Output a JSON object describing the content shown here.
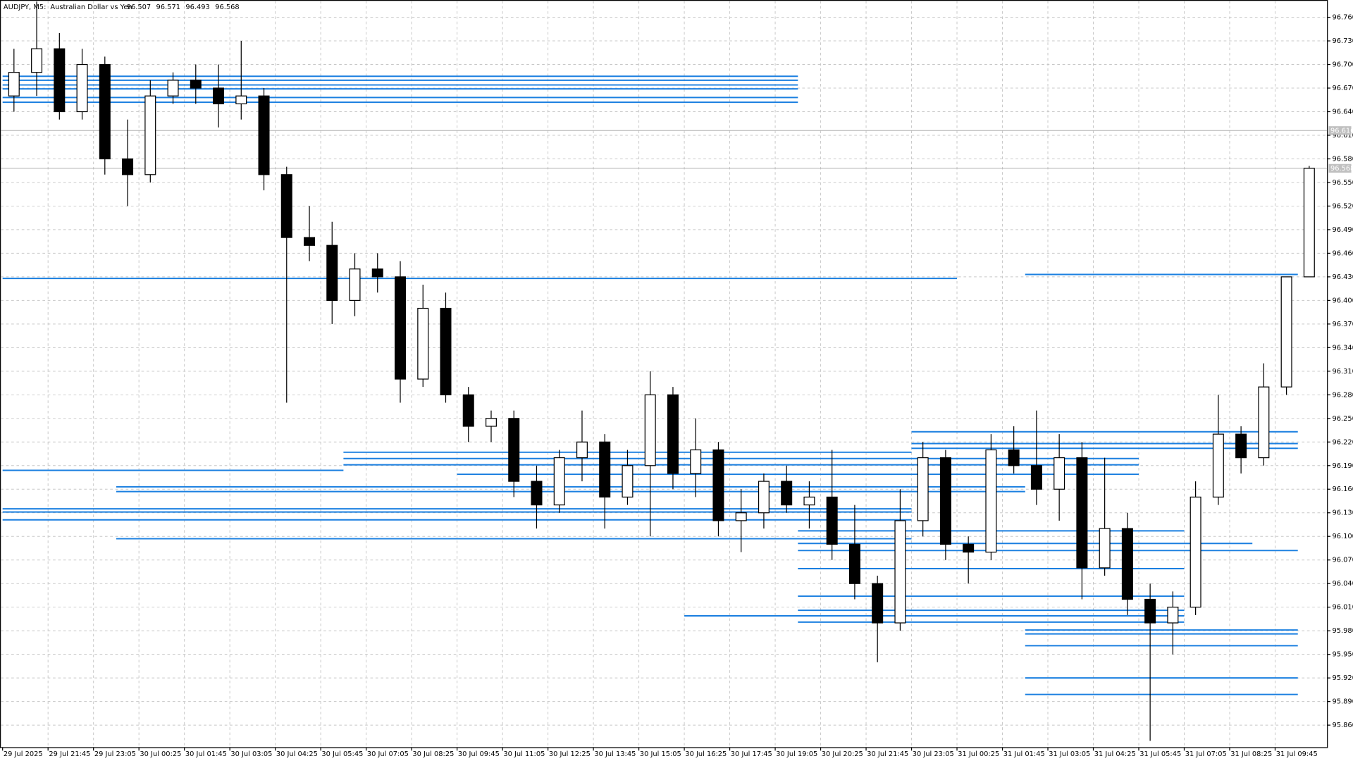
{
  "chart_data": {
    "type": "candlestick",
    "header": {
      "symbol": "AUDJPY, M5:",
      "description": "Australian Dollar vs Yen",
      "ohlc": [
        96.507,
        96.571,
        96.493,
        96.568
      ]
    },
    "categories": [
      "29 Jul 2025",
      null,
      "29 Jul 21:45",
      null,
      "29 Jul 23:05",
      null,
      "30 Jul 00:25",
      null,
      "30 Jul 01:45",
      null,
      "30 Jul 03:05",
      null,
      "30 Jul 04:25",
      null,
      "30 Jul 05:45",
      null,
      "30 Jul 07:05",
      null,
      "30 Jul 08:25",
      null,
      "30 Jul 09:45",
      null,
      "30 Jul 11:05",
      null,
      "30 Jul 12:25",
      null,
      "30 Jul 13:45",
      null,
      "30 Jul 15:05",
      null,
      "30 Jul 16:25",
      null,
      "30 Jul 17:45",
      null,
      "30 Jul 19:05",
      null,
      "30 Jul 20:25",
      null,
      "30 Jul 21:45",
      null,
      "30 Jul 23:05",
      null,
      "31 Jul 00:25",
      null,
      "31 Jul 01:45",
      null,
      "31 Jul 03:05",
      null,
      "31 Jul 04:25",
      null,
      "31 Jul 05:45",
      null,
      "31 Jul 07:05",
      null,
      "31 Jul 08:25",
      null,
      "31 Jul 09:45",
      null
    ],
    "open": [
      96.66,
      96.69,
      96.72,
      96.64,
      96.7,
      96.58,
      96.56,
      96.66,
      96.68,
      96.67,
      96.65,
      96.66,
      96.56,
      96.48,
      96.47,
      96.4,
      96.44,
      96.43,
      96.3,
      96.39,
      96.28,
      96.24,
      96.25,
      96.17,
      96.14,
      96.2,
      96.22,
      96.15,
      96.19,
      96.28,
      96.18,
      96.21,
      96.12,
      96.13,
      96.17,
      96.14,
      96.15,
      96.09,
      96.04,
      95.99,
      96.12,
      96.2,
      96.09,
      96.08,
      96.21,
      96.19,
      96.16,
      96.2,
      96.06,
      96.11,
      96.02,
      95.99,
      96.01,
      96.15,
      96.23,
      96.2,
      96.29,
      96.43
    ],
    "high": [
      96.72,
      96.78,
      96.74,
      96.72,
      96.71,
      96.63,
      96.68,
      96.69,
      96.7,
      96.7,
      96.73,
      96.67,
      96.57,
      96.52,
      96.5,
      96.46,
      96.46,
      96.45,
      96.42,
      96.41,
      96.29,
      96.26,
      96.26,
      96.19,
      96.21,
      96.26,
      96.23,
      96.21,
      96.31,
      96.29,
      96.25,
      96.22,
      96.16,
      96.18,
      96.19,
      96.17,
      96.21,
      96.14,
      96.05,
      96.16,
      96.22,
      96.21,
      96.1,
      96.23,
      96.24,
      96.26,
      96.23,
      96.22,
      96.2,
      96.13,
      96.04,
      96.03,
      96.17,
      96.28,
      96.24,
      96.32,
      96.43,
      96.571
    ],
    "low": [
      96.64,
      96.66,
      96.63,
      96.63,
      96.56,
      96.52,
      96.55,
      96.65,
      96.65,
      96.62,
      96.63,
      96.54,
      96.27,
      96.45,
      96.37,
      96.38,
      96.41,
      96.27,
      96.29,
      96.27,
      96.22,
      96.22,
      96.15,
      96.11,
      96.13,
      96.17,
      96.11,
      96.14,
      96.1,
      96.16,
      96.15,
      96.1,
      96.08,
      96.11,
      96.13,
      96.11,
      96.07,
      96.02,
      95.94,
      95.98,
      96.1,
      96.07,
      96.04,
      96.07,
      96.18,
      96.14,
      96.12,
      96.02,
      96.05,
      96.0,
      95.84,
      95.95,
      96.0,
      96.14,
      96.18,
      96.19,
      96.28,
      96.43
    ],
    "close": [
      96.69,
      96.72,
      96.64,
      96.7,
      96.58,
      96.56,
      96.66,
      96.68,
      96.67,
      96.65,
      96.66,
      96.56,
      96.48,
      96.47,
      96.4,
      96.44,
      96.43,
      96.3,
      96.39,
      96.28,
      96.24,
      96.25,
      96.17,
      96.14,
      96.2,
      96.22,
      96.15,
      96.19,
      96.28,
      96.18,
      96.21,
      96.12,
      96.13,
      96.17,
      96.14,
      96.15,
      96.09,
      96.04,
      95.99,
      96.12,
      96.2,
      96.09,
      96.08,
      96.21,
      96.19,
      96.16,
      96.2,
      96.06,
      96.11,
      96.02,
      95.99,
      96.01,
      96.15,
      96.23,
      96.2,
      96.29,
      96.43,
      96.568
    ],
    "up_color": "#ffffff",
    "down_color": "#000000",
    "wick_color": "#000000",
    "ylim": [
      95.832,
      96.782
    ],
    "yticks": [
      {
        "value": 96.76,
        "label": "96.760"
      },
      {
        "value": 96.73,
        "label": "96.730"
      },
      {
        "value": 96.7,
        "label": "96.700"
      },
      {
        "value": 96.67,
        "label": "96.670"
      },
      {
        "value": 96.64,
        "label": "96.640"
      },
      {
        "value": 96.61,
        "label": "96.610"
      },
      {
        "value": 96.58,
        "label": "96.580"
      },
      {
        "value": 96.55,
        "label": "96.550"
      },
      {
        "value": 96.52,
        "label": "96.520"
      },
      {
        "value": 96.49,
        "label": "96.490"
      },
      {
        "value": 96.46,
        "label": "96.460"
      },
      {
        "value": 96.43,
        "label": "96.430"
      },
      {
        "value": 96.4,
        "label": "96.400"
      },
      {
        "value": 96.37,
        "label": "96.370"
      },
      {
        "value": 96.34,
        "label": "96.340"
      },
      {
        "value": 96.31,
        "label": "96.310"
      },
      {
        "value": 96.28,
        "label": "96.280"
      },
      {
        "value": 96.25,
        "label": "96.250"
      },
      {
        "value": 96.22,
        "label": "96.220"
      },
      {
        "value": 96.19,
        "label": "96.190"
      },
      {
        "value": 96.16,
        "label": "96.160"
      },
      {
        "value": 96.13,
        "label": "96.130"
      },
      {
        "value": 96.1,
        "label": "96.100"
      },
      {
        "value": 96.07,
        "label": "96.070"
      },
      {
        "value": 96.04,
        "label": "96.040"
      },
      {
        "value": 96.01,
        "label": "96.010"
      },
      {
        "value": 95.98,
        "label": "95.980"
      },
      {
        "value": 95.95,
        "label": "95.950"
      },
      {
        "value": 95.92,
        "label": "95.920"
      },
      {
        "value": 95.89,
        "label": "95.890"
      },
      {
        "value": 95.86,
        "label": "95.860"
      }
    ],
    "grid": true,
    "price_lines": [
      96.616,
      96.568
    ],
    "level_color": "#1a7fe0",
    "levels": [
      {
        "price": 96.685,
        "from": 0,
        "to": 35
      },
      {
        "price": 96.68,
        "from": 0,
        "to": 35
      },
      {
        "price": 96.674,
        "from": 0,
        "to": 35
      },
      {
        "price": 96.669,
        "from": 0,
        "to": 35
      },
      {
        "price": 96.658,
        "from": 0,
        "to": 35
      },
      {
        "price": 96.652,
        "from": 0,
        "to": 35
      },
      {
        "price": 96.428,
        "from": 0,
        "to": 42
      },
      {
        "price": 96.433,
        "from": 45,
        "to": 57
      },
      {
        "price": 96.184,
        "from": 0,
        "to": 15
      },
      {
        "price": 96.135,
        "from": 0,
        "to": 40
      },
      {
        "price": 96.131,
        "from": 0,
        "to": 40
      },
      {
        "price": 96.121,
        "from": 0,
        "to": 40
      },
      {
        "price": 96.163,
        "from": 5,
        "to": 45
      },
      {
        "price": 96.157,
        "from": 5,
        "to": 45
      },
      {
        "price": 96.097,
        "from": 5,
        "to": 40
      },
      {
        "price": 96.207,
        "from": 15,
        "to": 40
      },
      {
        "price": 96.199,
        "from": 15,
        "to": 50
      },
      {
        "price": 96.191,
        "from": 15,
        "to": 50
      },
      {
        "price": 96.179,
        "from": 20,
        "to": 50
      },
      {
        "price": 96.233,
        "from": 40,
        "to": 57
      },
      {
        "price": 96.218,
        "from": 40,
        "to": 57
      },
      {
        "price": 96.212,
        "from": 40,
        "to": 57
      },
      {
        "price": 96.107,
        "from": 35,
        "to": 52
      },
      {
        "price": 96.091,
        "from": 35,
        "to": 55
      },
      {
        "price": 96.082,
        "from": 35,
        "to": 57
      },
      {
        "price": 96.059,
        "from": 35,
        "to": 52
      },
      {
        "price": 96.024,
        "from": 35,
        "to": 52
      },
      {
        "price": 96.006,
        "from": 35,
        "to": 52
      },
      {
        "price": 95.999,
        "from": 30,
        "to": 52
      },
      {
        "price": 95.991,
        "from": 35,
        "to": 52
      },
      {
        "price": 95.981,
        "from": 45,
        "to": 57
      },
      {
        "price": 95.976,
        "from": 45,
        "to": 57
      },
      {
        "price": 95.961,
        "from": 45,
        "to": 57
      },
      {
        "price": 95.92,
        "from": 45,
        "to": 57
      },
      {
        "price": 95.899,
        "from": 45,
        "to": 57
      }
    ]
  }
}
